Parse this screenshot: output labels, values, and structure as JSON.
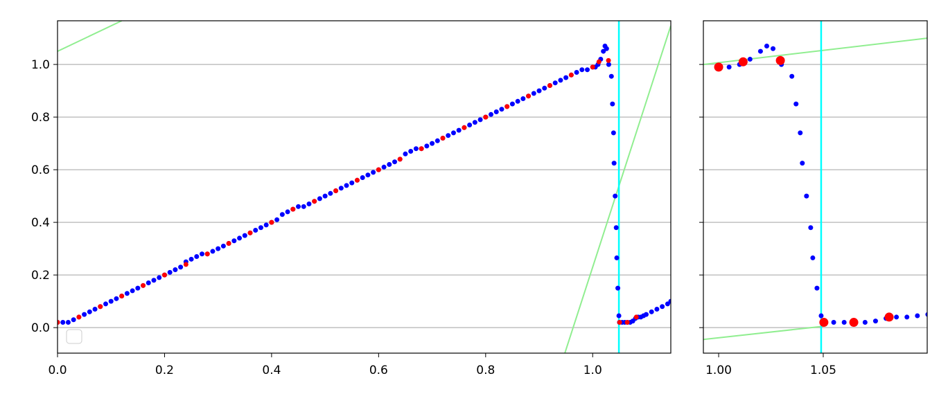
{
  "chart_data": {
    "type": "scatter",
    "vline": {
      "x": 1.049,
      "color": "#00ffff"
    },
    "series": [
      {
        "color": "#0000ff",
        "x": [
          0,
          0.01,
          0.02,
          0.03,
          0.04,
          0.05,
          0.06,
          0.07,
          0.08,
          0.09,
          0.1,
          0.11,
          0.12,
          0.13,
          0.14,
          0.15,
          0.16,
          0.17,
          0.18,
          0.19,
          0.2,
          0.21,
          0.22,
          0.23,
          0.24,
          0.25,
          0.26,
          0.27,
          0.28,
          0.29,
          0.3,
          0.31,
          0.32,
          0.33,
          0.34,
          0.35,
          0.36,
          0.37,
          0.38,
          0.39,
          0.4,
          0.41,
          0.42,
          0.43,
          0.44,
          0.45,
          0.46,
          0.47,
          0.48,
          0.49,
          0.5,
          0.51,
          0.52,
          0.53,
          0.54,
          0.55,
          0.56,
          0.57,
          0.58,
          0.59,
          0.6,
          0.61,
          0.62,
          0.63,
          0.64,
          0.65,
          0.66,
          0.67,
          0.68,
          0.69,
          0.7,
          0.71,
          0.72,
          0.73,
          0.74,
          0.75,
          0.76,
          0.77,
          0.78,
          0.79,
          0.8,
          0.81,
          0.82,
          0.83,
          0.84,
          0.85,
          0.86,
          0.87,
          0.88,
          0.89,
          0.9,
          0.91,
          0.92,
          0.93,
          0.94,
          0.95,
          0.96,
          0.97,
          0.98,
          0.99,
          1.0,
          1.005,
          1.01,
          1.015,
          1.02,
          1.023,
          1.026,
          1.03,
          1.035,
          1.037,
          1.039,
          1.04,
          1.042,
          1.044,
          1.045,
          1.047,
          1.049,
          1.05,
          1.055,
          1.06,
          1.065,
          1.07,
          1.075,
          1.08,
          1.085,
          1.09,
          1.095,
          1.1,
          1.11,
          1.12,
          1.13,
          1.14,
          1.146
        ],
        "y": [
          0.02,
          0.02,
          0.02,
          0.03,
          0.04,
          0.05,
          0.06,
          0.07,
          0.08,
          0.09,
          0.1,
          0.11,
          0.12,
          0.13,
          0.14,
          0.15,
          0.16,
          0.17,
          0.18,
          0.19,
          0.2,
          0.21,
          0.22,
          0.23,
          0.25,
          0.26,
          0.27,
          0.28,
          0.28,
          0.29,
          0.3,
          0.31,
          0.32,
          0.33,
          0.34,
          0.35,
          0.36,
          0.37,
          0.38,
          0.39,
          0.4,
          0.41,
          0.43,
          0.44,
          0.45,
          0.46,
          0.46,
          0.47,
          0.48,
          0.49,
          0.5,
          0.51,
          0.52,
          0.53,
          0.54,
          0.55,
          0.56,
          0.57,
          0.58,
          0.59,
          0.6,
          0.61,
          0.62,
          0.63,
          0.64,
          0.66,
          0.67,
          0.68,
          0.68,
          0.69,
          0.7,
          0.71,
          0.72,
          0.73,
          0.74,
          0.75,
          0.76,
          0.77,
          0.78,
          0.79,
          0.8,
          0.81,
          0.82,
          0.83,
          0.84,
          0.85,
          0.86,
          0.87,
          0.88,
          0.89,
          0.9,
          0.91,
          0.92,
          0.93,
          0.94,
          0.95,
          0.96,
          0.97,
          0.98,
          0.98,
          0.99,
          0.99,
          1.0,
          1.02,
          1.05,
          1.07,
          1.06,
          1.0,
          0.955,
          0.85,
          0.74,
          0.625,
          0.5,
          0.38,
          0.265,
          0.15,
          0.045,
          0.02,
          0.02,
          0.02,
          0.02,
          0.02,
          0.025,
          0.035,
          0.04,
          0.04,
          0.045,
          0.05,
          0.06,
          0.07,
          0.08,
          0.09,
          0.1
        ]
      },
      {
        "color": "#ff0000",
        "x": [
          0,
          0.04,
          0.08,
          0.12,
          0.16,
          0.2,
          0.24,
          0.28,
          0.32,
          0.36,
          0.4,
          0.44,
          0.48,
          0.52,
          0.56,
          0.6,
          0.64,
          0.68,
          0.72,
          0.76,
          0.8,
          0.84,
          0.88,
          0.92,
          0.96,
          1.0,
          1.0117,
          1.0295,
          1.0503,
          1.0646,
          1.0815
        ],
        "y": [
          0.02,
          0.04,
          0.08,
          0.12,
          0.16,
          0.2,
          0.24,
          0.28,
          0.32,
          0.36,
          0.4,
          0.45,
          0.48,
          0.52,
          0.56,
          0.6,
          0.64,
          0.68,
          0.72,
          0.76,
          0.8,
          0.84,
          0.88,
          0.92,
          0.96,
          0.99,
          1.01,
          1.015,
          0.02,
          0.02,
          0.04
        ]
      }
    ],
    "panels": [
      {
        "xlim": [
          0,
          1.146
        ],
        "ylim": [
          -0.097,
          1.166
        ],
        "xticks": [
          {
            "value": 0,
            "label": "0.0"
          },
          0.2,
          0.4,
          0.6,
          0.8,
          {
            "value": 1,
            "label": "1.0"
          }
        ],
        "yticks": [
          {
            "value": 0,
            "label": "0.0"
          },
          0.2,
          0.4,
          0.6,
          0.8,
          {
            "value": 1,
            "label": "1.0"
          }
        ],
        "lines": [
          {
            "color": "#90ee90",
            "x": [
              0,
              0.12
            ],
            "y": [
              1.05,
              1.166
            ]
          },
          {
            "color": "#90ee90",
            "x": [
              0.948,
              1.146
            ],
            "y": [
              -0.097,
              1.147
            ]
          }
        ]
      },
      {
        "xlim": [
          0.9927,
          1.0997
        ],
        "ylim": [
          -0.097,
          1.166
        ],
        "xticks": [
          {
            "value": 1,
            "label": "1.00"
          },
          1.05
        ],
        "yticks": [
          0,
          0.2,
          0.4,
          0.6,
          0.8,
          1
        ],
        "lines": [
          {
            "color": "#90ee90",
            "x": [
              0.9927,
              1.0997
            ],
            "y": [
              1.0,
              1.1
            ]
          },
          {
            "color": "#90ee90",
            "x": [
              0.9927,
              1.05
            ],
            "y": [
              -0.045,
              0.005
            ]
          }
        ]
      }
    ]
  }
}
